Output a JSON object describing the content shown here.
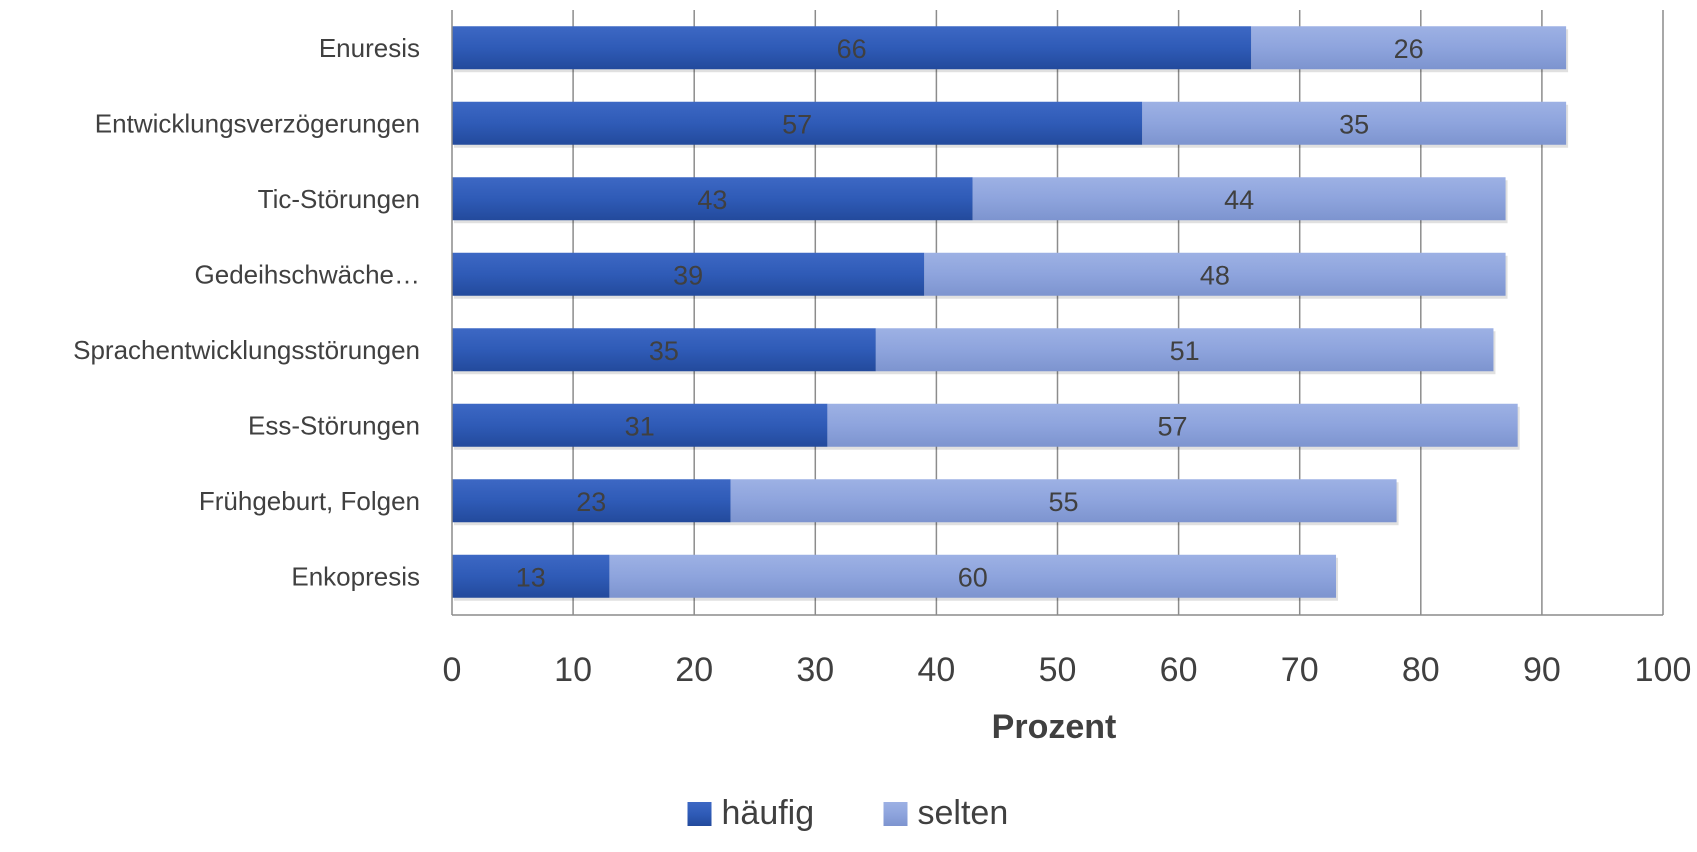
{
  "chart_data": {
    "type": "bar",
    "orientation": "horizontal",
    "stacked": true,
    "categories": [
      "Enuresis",
      "Entwicklungsverzögerungen",
      "Tic-Störungen",
      "Gedeihschwäche…",
      "Sprachentwicklungsstörungen",
      "Ess-Störungen",
      "Frühgeburt, Folgen",
      "Enkopresis"
    ],
    "series": [
      {
        "name": "häufig",
        "values": [
          66,
          57,
          43,
          39,
          35,
          31,
          23,
          13
        ],
        "color": "#2f5bb7"
      },
      {
        "name": "selten",
        "values": [
          26,
          35,
          44,
          48,
          51,
          57,
          55,
          60
        ],
        "color": "#8ea4dd"
      }
    ],
    "x_ticks": [
      "0",
      "10",
      "20",
      "30",
      "40",
      "50",
      "60",
      "70",
      "80",
      "90",
      "100"
    ],
    "xlabel": "Prozent",
    "ylabel": "",
    "xlim": [
      0,
      100
    ],
    "grid": "vertical",
    "legend": "bottom-center",
    "data_labels": true,
    "label_color": "#404040",
    "gridline_color": "#8c8c8c"
  }
}
